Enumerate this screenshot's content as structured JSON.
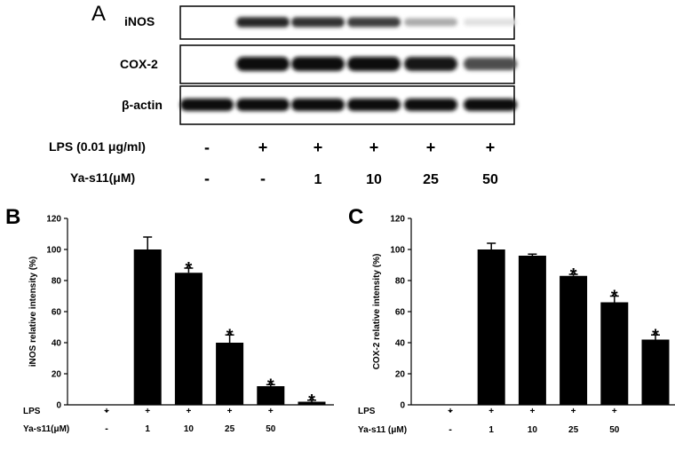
{
  "panel_a": {
    "letter": "A",
    "blots": [
      {
        "label": "iNOS",
        "bands": [
          0,
          0.88,
          0.82,
          0.78,
          0.28,
          0.05
        ]
      },
      {
        "label": "COX-2",
        "bands": [
          0,
          1.0,
          1.0,
          0.98,
          0.95,
          0.7
        ]
      },
      {
        "label": "β-actin",
        "bands": [
          1.0,
          1.0,
          1.0,
          1.0,
          1.0,
          1.0
        ]
      }
    ],
    "treatments": [
      {
        "label": "LPS (0.01 μg/ml)",
        "values": [
          "-",
          "+",
          "+",
          "+",
          "+",
          "+"
        ]
      },
      {
        "label": "Ya-s11(μM)",
        "values": [
          "-",
          "-",
          "1",
          "10",
          "25",
          "50"
        ]
      }
    ]
  },
  "chart_data": [
    {
      "type": "bar",
      "panel": "B",
      "title": "",
      "ylabel": "iNOS relative intensity (%)",
      "xlabel": "",
      "ylim": [
        0,
        120
      ],
      "yticks": [
        0,
        20,
        40,
        60,
        80,
        100,
        120
      ],
      "values": [
        0,
        100,
        85,
        40,
        12,
        2
      ],
      "errors": [
        0,
        8,
        3,
        5,
        1,
        1
      ],
      "significant": [
        false,
        false,
        true,
        true,
        true,
        true
      ],
      "star_label": "*",
      "rows": [
        {
          "label": "LPS",
          "values": [
            "-",
            "+",
            "+",
            "+",
            "+",
            "+"
          ]
        },
        {
          "label": "Ya-s11(μM)",
          "values": [
            "-",
            "-",
            "1",
            "10",
            "25",
            "50"
          ]
        }
      ]
    },
    {
      "type": "bar",
      "panel": "C",
      "title": "",
      "ylabel": "COX-2 relative intensity (%)",
      "xlabel": "",
      "ylim": [
        0,
        120
      ],
      "yticks": [
        0,
        20,
        40,
        60,
        80,
        100,
        120
      ],
      "values": [
        0,
        100,
        96,
        83,
        66,
        42
      ],
      "errors": [
        0,
        4,
        1,
        1,
        4,
        3
      ],
      "significant": [
        false,
        false,
        false,
        true,
        true,
        true
      ],
      "star_label": "*",
      "rows": [
        {
          "label": "LPS",
          "values": [
            "-",
            "+",
            "+",
            "+",
            "+",
            "+"
          ]
        },
        {
          "label": "Ya-s11 (μM)",
          "values": [
            "-",
            "-",
            "1",
            "10",
            "25",
            "50"
          ]
        }
      ]
    }
  ]
}
